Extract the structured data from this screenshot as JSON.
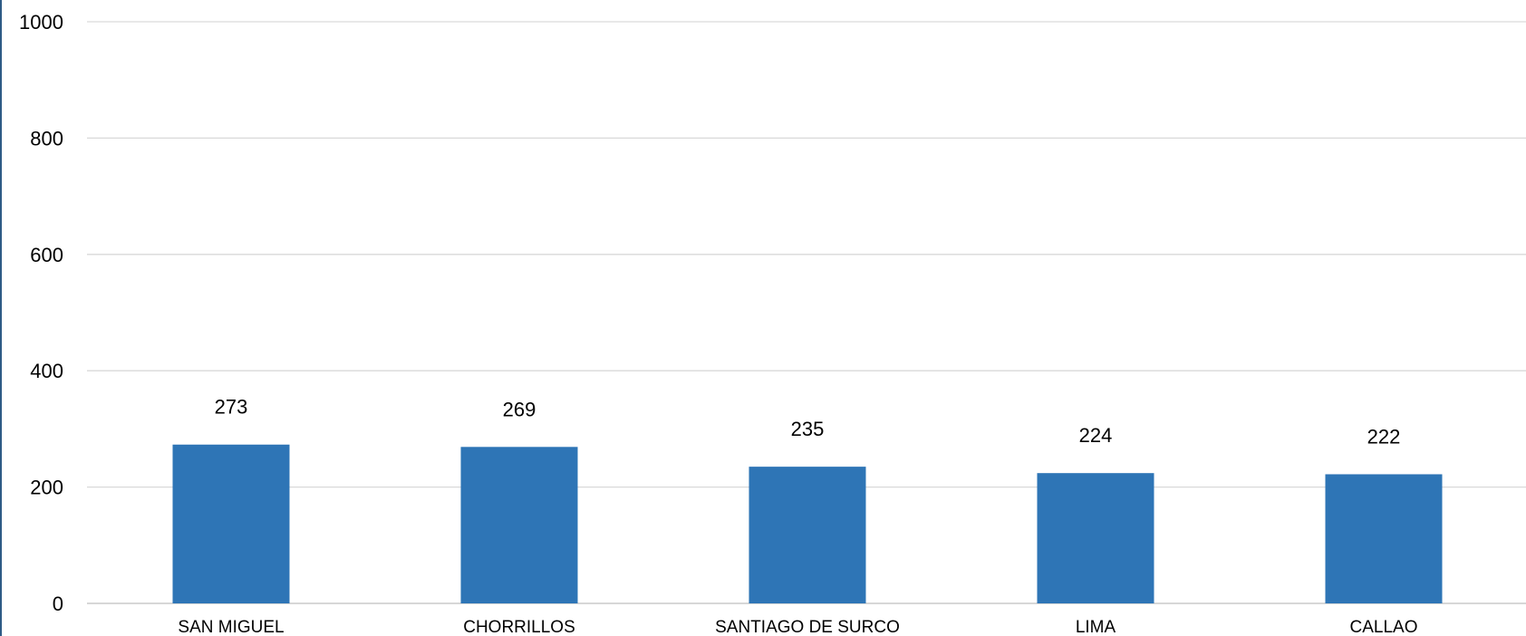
{
  "chart_data": {
    "type": "bar",
    "categories": [
      "SAN MIGUEL",
      "CHORRILLOS",
      "SANTIAGO DE SURCO",
      "LIMA",
      "CALLAO"
    ],
    "values": [
      273,
      269,
      235,
      224,
      222
    ],
    "data_labels": [
      "273",
      "269",
      "235",
      "224",
      "222"
    ],
    "yticks": [
      "0",
      "200",
      "400",
      "600",
      "800",
      "1000"
    ],
    "ylim": [
      0,
      1000
    ],
    "grid": true,
    "legend": "none",
    "bar_color": "#2e75b6"
  }
}
